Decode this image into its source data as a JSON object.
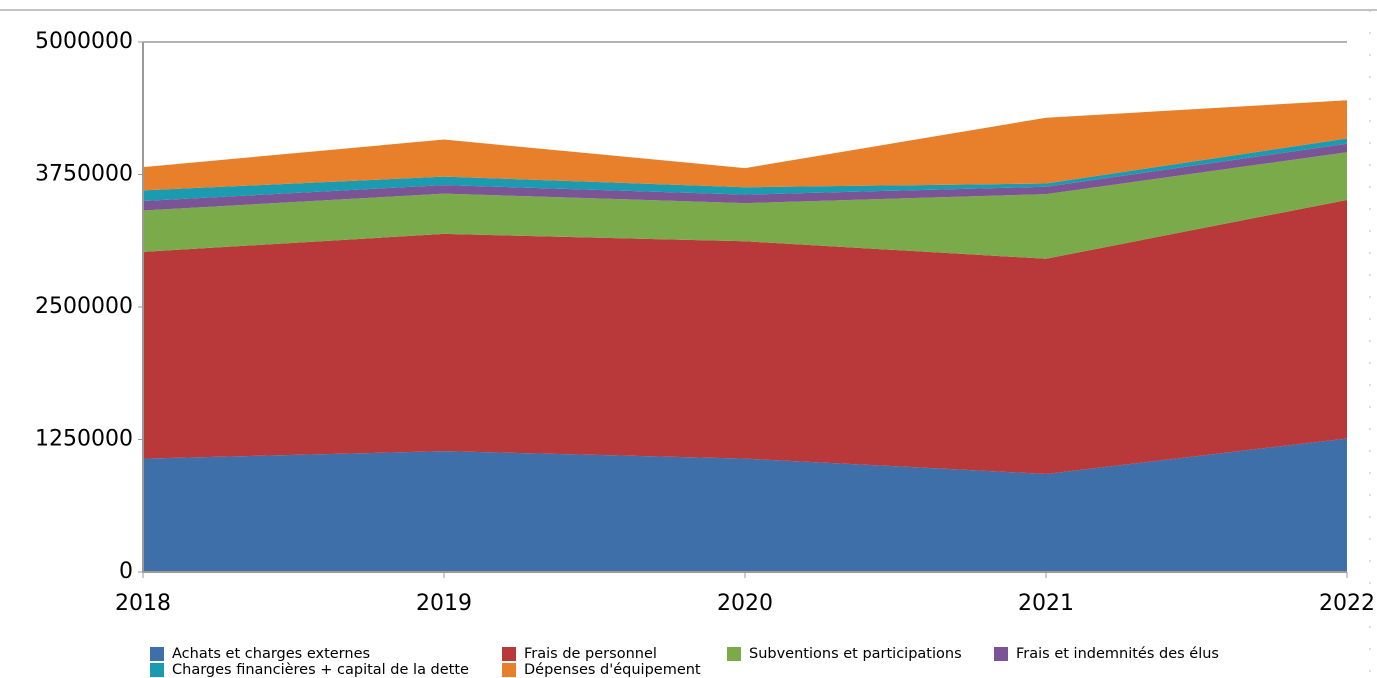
{
  "chart_data": {
    "type": "stacked_area",
    "categories": [
      "2018",
      "2019",
      "2020",
      "2021",
      "2022"
    ],
    "series": [
      {
        "name": "Achats et charges externes",
        "color": "#3e6fa8",
        "values": [
          1070000,
          1140000,
          1070000,
          925000,
          1260000
        ]
      },
      {
        "name": "Frais de personnel",
        "color": "#b9393a",
        "values": [
          1950000,
          2050000,
          2050000,
          2030000,
          2250000
        ]
      },
      {
        "name": "Subventions et participations",
        "color": "#7aaa4a",
        "values": [
          390000,
          380000,
          360000,
          610000,
          450000
        ]
      },
      {
        "name": "Frais et indemnités des élus",
        "color": "#7b5496",
        "values": [
          90000,
          80000,
          80000,
          70000,
          80000
        ]
      },
      {
        "name": "Charges financières + capital de la dette",
        "color": "#1a9bb0",
        "values": [
          100000,
          80000,
          70000,
          30000,
          50000
        ]
      },
      {
        "name": "Dépenses d'équipement",
        "color": "#e87f2a",
        "values": [
          220000,
          350000,
          180000,
          620000,
          360000
        ]
      }
    ],
    "ylim": [
      0,
      5000000
    ],
    "yticks": [
      0,
      1250000,
      2500000,
      3750000,
      5000000
    ],
    "grid": false
  }
}
